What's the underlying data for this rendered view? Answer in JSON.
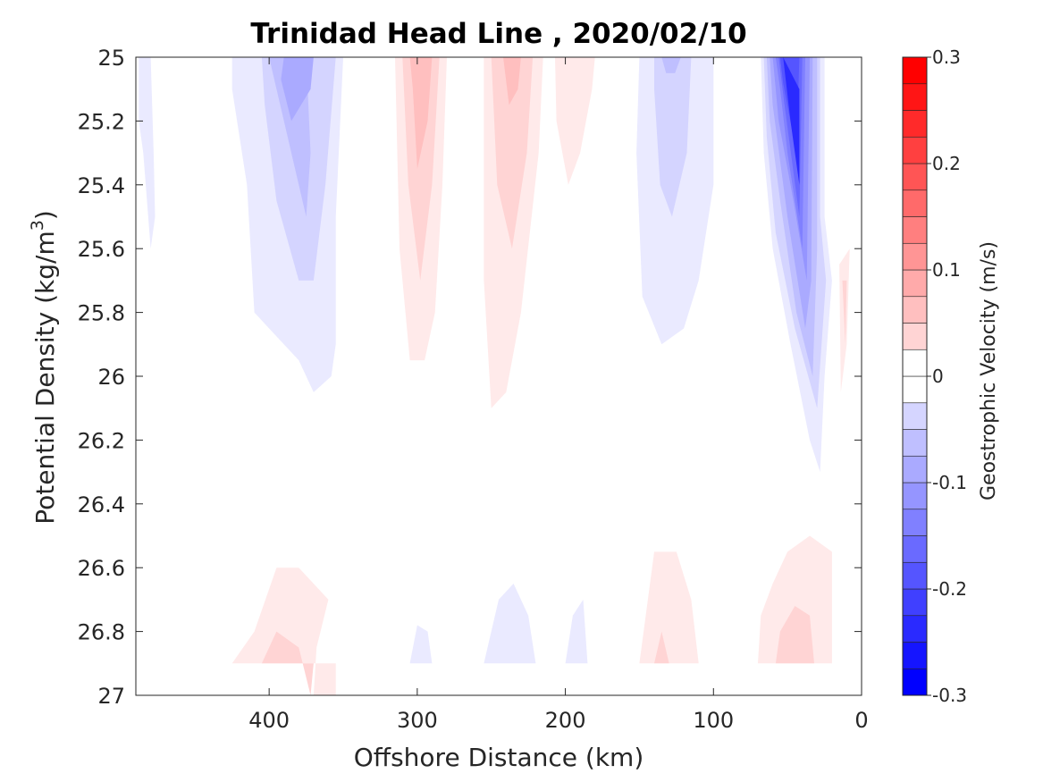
{
  "chart_data": {
    "type": "contour",
    "title": "Trinidad Head Line , 2020/02/10",
    "xlabel": "Offshore Distance (km)",
    "ylabel_prefix": "Potential Density (kg/m",
    "ylabel_sup": "3",
    "ylabel_suffix": ")",
    "xlim": [
      490,
      0
    ],
    "ylim": [
      25,
      27
    ],
    "x_reversed": true,
    "y_reversed": true,
    "xticks": [
      400,
      300,
      200,
      100,
      0
    ],
    "yticks": [
      25,
      25.2,
      25.4,
      25.6,
      25.8,
      26,
      26.2,
      26.4,
      26.6,
      26.8,
      27
    ],
    "yticklabels": [
      "25",
      "25.2",
      "25.4",
      "25.6",
      "25.8",
      "26",
      "26.2",
      "26.4",
      "26.6",
      "26.8",
      "27"
    ],
    "grid": false,
    "colorbar": {
      "label": "Geostrophic Velocity (m/s)",
      "range": [
        -0.3,
        0.3
      ],
      "step": 0.025,
      "ticks": [
        -0.3,
        -0.2,
        -0.1,
        0,
        0.1,
        0.2,
        0.3
      ],
      "ticklabels": [
        "-0.3",
        "-0.2",
        "-0.1",
        "0",
        "0.1",
        "0.2",
        "0.3"
      ],
      "colormap": "blue-white-red"
    },
    "regions": [
      {
        "level": -0.025,
        "points": [
          [
            488,
            25
          ],
          [
            480,
            25
          ],
          [
            478,
            25.3
          ],
          [
            477,
            25.5
          ],
          [
            480,
            25.6
          ],
          [
            485,
            25.3
          ],
          [
            488,
            25.2
          ]
        ]
      },
      {
        "level": -0.025,
        "points": [
          [
            425,
            25
          ],
          [
            350,
            25
          ],
          [
            355,
            25.5
          ],
          [
            355,
            25.9
          ],
          [
            358,
            26.0
          ],
          [
            370,
            26.05
          ],
          [
            380,
            25.95
          ],
          [
            400,
            25.85
          ],
          [
            410,
            25.8
          ],
          [
            415,
            25.4
          ],
          [
            425,
            25.1
          ]
        ]
      },
      {
        "level": -0.05,
        "points": [
          [
            405,
            25
          ],
          [
            355,
            25
          ],
          [
            362,
            25.4
          ],
          [
            370,
            25.7
          ],
          [
            380,
            25.7
          ],
          [
            395,
            25.45
          ],
          [
            403,
            25.15
          ]
        ]
      },
      {
        "level": -0.075,
        "points": [
          [
            400,
            25
          ],
          [
            375,
            25
          ],
          [
            372,
            25.3
          ],
          [
            375,
            25.5
          ],
          [
            385,
            25.3
          ],
          [
            395,
            25.1
          ]
        ]
      },
      {
        "level": -0.1,
        "points": [
          [
            390,
            25
          ],
          [
            370,
            25
          ],
          [
            372,
            25.1
          ],
          [
            385,
            25.2
          ],
          [
            392,
            25.07
          ]
        ]
      },
      {
        "level": -0.025,
        "points": [
          [
            150,
            25
          ],
          [
            100,
            25
          ],
          [
            100,
            25.4
          ],
          [
            110,
            25.7
          ],
          [
            120,
            25.85
          ],
          [
            135,
            25.9
          ],
          [
            148,
            25.75
          ],
          [
            152,
            25.3
          ]
        ]
      },
      {
        "level": -0.05,
        "points": [
          [
            140,
            25
          ],
          [
            115,
            25
          ],
          [
            118,
            25.3
          ],
          [
            128,
            25.5
          ],
          [
            136,
            25.4
          ],
          [
            140,
            25.1
          ]
        ]
      },
      {
        "level": -0.075,
        "points": [
          [
            135,
            25
          ],
          [
            122,
            25
          ],
          [
            126,
            25.05
          ],
          [
            132,
            25.05
          ]
        ]
      },
      {
        "level": -0.025,
        "points": [
          [
            68,
            25
          ],
          [
            25,
            25
          ],
          [
            25,
            25.5
          ],
          [
            20,
            25.7
          ],
          [
            25,
            26.0
          ],
          [
            28,
            26.3
          ],
          [
            35,
            26.2
          ],
          [
            48,
            25.9
          ],
          [
            60,
            25.6
          ],
          [
            66,
            25.3
          ]
        ]
      },
      {
        "level": -0.05,
        "points": [
          [
            66,
            25
          ],
          [
            28,
            25
          ],
          [
            28,
            25.5
          ],
          [
            24,
            25.7
          ],
          [
            30,
            26.1
          ],
          [
            45,
            25.85
          ],
          [
            58,
            25.55
          ],
          [
            64,
            25.25
          ]
        ]
      },
      {
        "level": -0.075,
        "points": [
          [
            64,
            25
          ],
          [
            30,
            25
          ],
          [
            30,
            25.6
          ],
          [
            33,
            26.0
          ],
          [
            44,
            25.8
          ],
          [
            55,
            25.45
          ],
          [
            62,
            25.2
          ]
        ]
      },
      {
        "level": -0.1,
        "points": [
          [
            62,
            25
          ],
          [
            33,
            25
          ],
          [
            34,
            25.7
          ],
          [
            38,
            25.85
          ],
          [
            50,
            25.5
          ],
          [
            60,
            25.15
          ]
        ]
      },
      {
        "level": -0.125,
        "points": [
          [
            60,
            25
          ],
          [
            35,
            25
          ],
          [
            37,
            25.7
          ],
          [
            46,
            25.45
          ],
          [
            56,
            25.2
          ]
        ]
      },
      {
        "level": -0.15,
        "points": [
          [
            58,
            25
          ],
          [
            38,
            25
          ],
          [
            40,
            25.6
          ],
          [
            50,
            25.3
          ],
          [
            55,
            25.1
          ]
        ]
      },
      {
        "level": -0.175,
        "points": [
          [
            56,
            25
          ],
          [
            40,
            25
          ],
          [
            42,
            25.5
          ],
          [
            52,
            25.15
          ]
        ]
      },
      {
        "level": -0.2,
        "points": [
          [
            55,
            25
          ],
          [
            42,
            25
          ],
          [
            44,
            25.3
          ],
          [
            53,
            25.08
          ]
        ]
      },
      {
        "level": -0.25,
        "points": [
          [
            53,
            25
          ],
          [
            42,
            25.1
          ],
          [
            42,
            25.4
          ],
          [
            48,
            25.2
          ]
        ]
      },
      {
        "level": 0.025,
        "points": [
          [
            315,
            25
          ],
          [
            280,
            25
          ],
          [
            283,
            25.4
          ],
          [
            288,
            25.8
          ],
          [
            295,
            25.95
          ],
          [
            305,
            25.95
          ],
          [
            312,
            25.6
          ]
        ]
      },
      {
        "level": 0.05,
        "points": [
          [
            310,
            25
          ],
          [
            285,
            25
          ],
          [
            290,
            25.4
          ],
          [
            298,
            25.7
          ],
          [
            306,
            25.4
          ]
        ]
      },
      {
        "level": 0.075,
        "points": [
          [
            305,
            25
          ],
          [
            290,
            25
          ],
          [
            293,
            25.2
          ],
          [
            300,
            25.35
          ],
          [
            303,
            25.1
          ]
        ]
      },
      {
        "level": 0.025,
        "points": [
          [
            255,
            25
          ],
          [
            215,
            25
          ],
          [
            218,
            25.3
          ],
          [
            230,
            25.8
          ],
          [
            240,
            26.05
          ],
          [
            250,
            26.1
          ],
          [
            255,
            25.7
          ]
        ]
      },
      {
        "level": 0.05,
        "points": [
          [
            250,
            25
          ],
          [
            222,
            25
          ],
          [
            226,
            25.3
          ],
          [
            236,
            25.6
          ],
          [
            246,
            25.4
          ]
        ]
      },
      {
        "level": 0.075,
        "points": [
          [
            242,
            25
          ],
          [
            230,
            25
          ],
          [
            232,
            25.1
          ],
          [
            238,
            25.15
          ]
        ]
      },
      {
        "level": 0.025,
        "points": [
          [
            207,
            25
          ],
          [
            180,
            25
          ],
          [
            182,
            25.1
          ],
          [
            190,
            25.3
          ],
          [
            198,
            25.4
          ],
          [
            206,
            25.2
          ]
        ]
      },
      {
        "level": 0.025,
        "points": [
          [
            15,
            25.65
          ],
          [
            8,
            25.6
          ],
          [
            10,
            25.9
          ],
          [
            14,
            26.05
          ]
        ]
      },
      {
        "level": 0.05,
        "points": [
          [
            13,
            25.7
          ],
          [
            10,
            25.7
          ],
          [
            11,
            25.9
          ]
        ]
      },
      {
        "level": 0.025,
        "points": [
          [
            425,
            26.9
          ],
          [
            355,
            26.9
          ],
          [
            355,
            27
          ],
          [
            370,
            27
          ],
          [
            368,
            26.85
          ],
          [
            360,
            26.7
          ],
          [
            380,
            26.6
          ],
          [
            395,
            26.6
          ],
          [
            410,
            26.8
          ]
        ]
      },
      {
        "level": 0.05,
        "points": [
          [
            405,
            26.9
          ],
          [
            370,
            26.9
          ],
          [
            372,
            27
          ],
          [
            380,
            26.85
          ],
          [
            395,
            26.8
          ]
        ]
      },
      {
        "level": -0.025,
        "points": [
          [
            305,
            26.9
          ],
          [
            290,
            26.9
          ],
          [
            293,
            26.8
          ],
          [
            300,
            26.78
          ]
        ]
      },
      {
        "level": -0.025,
        "points": [
          [
            255,
            26.9
          ],
          [
            220,
            26.9
          ],
          [
            225,
            26.75
          ],
          [
            235,
            26.65
          ],
          [
            245,
            26.7
          ]
        ]
      },
      {
        "level": -0.025,
        "points": [
          [
            200,
            26.9
          ],
          [
            185,
            26.9
          ],
          [
            188,
            26.7
          ],
          [
            195,
            26.75
          ]
        ]
      },
      {
        "level": 0.025,
        "points": [
          [
            150,
            26.9
          ],
          [
            110,
            26.9
          ],
          [
            115,
            26.7
          ],
          [
            125,
            26.55
          ],
          [
            140,
            26.55
          ]
        ]
      },
      {
        "level": 0.05,
        "points": [
          [
            140,
            26.9
          ],
          [
            130,
            26.9
          ],
          [
            135,
            26.8
          ]
        ]
      },
      {
        "level": 0.025,
        "points": [
          [
            70,
            26.9
          ],
          [
            20,
            26.9
          ],
          [
            20,
            26.55
          ],
          [
            35,
            26.5
          ],
          [
            50,
            26.55
          ],
          [
            60,
            26.65
          ],
          [
            68,
            26.75
          ]
        ]
      },
      {
        "level": 0.05,
        "points": [
          [
            58,
            26.9
          ],
          [
            32,
            26.9
          ],
          [
            35,
            26.75
          ],
          [
            45,
            26.72
          ],
          [
            55,
            26.8
          ]
        ]
      }
    ]
  }
}
